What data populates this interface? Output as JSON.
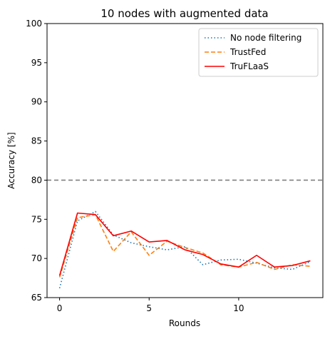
{
  "chart_data": {
    "type": "line",
    "title": "10 nodes with augmented data",
    "xlabel": "Rounds",
    "ylabel": "Accuracy [%]",
    "xlim": [
      -0.7,
      14.7
    ],
    "ylim": [
      65,
      100
    ],
    "xticks": [
      0,
      5,
      10
    ],
    "yticks": [
      65,
      70,
      75,
      80,
      85,
      90,
      95,
      100
    ],
    "grid": false,
    "legend_position": "top-right",
    "reference_line": {
      "y": 80,
      "color": "#808080",
      "style": "dashed"
    },
    "x": [
      0,
      1,
      2,
      3,
      4,
      5,
      6,
      7,
      8,
      9,
      10,
      11,
      12,
      13,
      14
    ],
    "series": [
      {
        "name": "No node filtering",
        "color": "#1f77b4",
        "style": "dotted",
        "values": [
          66.2,
          74.8,
          76.0,
          73.0,
          72.0,
          71.5,
          71.1,
          71.5,
          69.2,
          69.8,
          69.9,
          69.4,
          68.8,
          68.6,
          69.6
        ]
      },
      {
        "name": "TrustFed",
        "color": "#ff7f0e",
        "style": "dashed",
        "values": [
          67.6,
          75.2,
          75.6,
          70.9,
          73.4,
          70.4,
          72.2,
          71.4,
          70.7,
          69.2,
          68.9,
          69.5,
          68.6,
          69.2,
          69.0
        ]
      },
      {
        "name": "TruFLaaS",
        "color": "#ff0000",
        "style": "solid",
        "values": [
          67.8,
          75.8,
          75.6,
          72.9,
          73.5,
          72.1,
          72.3,
          71.1,
          70.5,
          69.3,
          68.9,
          70.4,
          68.9,
          69.1,
          69.7
        ]
      }
    ]
  }
}
